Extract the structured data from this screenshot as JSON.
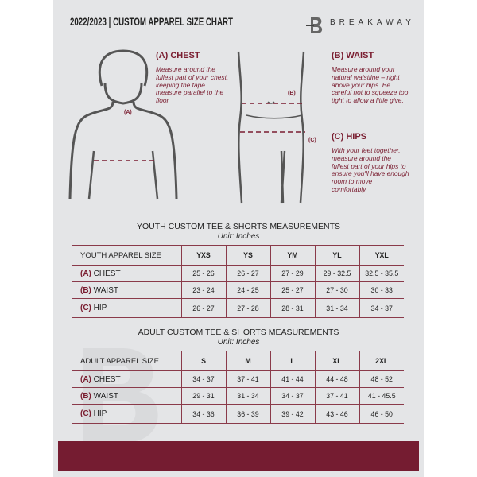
{
  "header": {
    "title": "2022/2023  |  CUSTOM APPAREL SIZE CHART",
    "brand": "BREAKAWAY"
  },
  "guides": {
    "chest": {
      "title": "(A) CHEST",
      "text": "Measure around the fullest part of your chest, keeping the tape measure parallel to the floor",
      "marker": "(A)"
    },
    "waist": {
      "title": "(B) WAIST",
      "text": "Measure around your natural waistline – right above your hips. Be careful not to squeeze too tight to allow a little give.",
      "marker": "(B)"
    },
    "hips": {
      "title": "(C) HIPS",
      "text": "With your feet together, measure around the fullest part of your hips to ensure you'll have enough room to move comfortably.",
      "marker": "(C)"
    }
  },
  "youth": {
    "title": "YOUTH CUSTOM TEE & SHORTS MEASUREMENTS",
    "unit": "Unit: Inches",
    "header": "YOUTH APPAREL SIZE",
    "sizes": [
      "YXS",
      "YS",
      "YM",
      "YL",
      "YXL"
    ],
    "rows": [
      {
        "code": "(A)",
        "name": "CHEST",
        "values": [
          "25 - 26",
          "26 - 27",
          "27 - 29",
          "29 - 32.5",
          "32.5 - 35.5"
        ]
      },
      {
        "code": "(B)",
        "name": "WAIST",
        "values": [
          "23 - 24",
          "24 - 25",
          "25 - 27",
          "27 - 30",
          "30 - 33"
        ]
      },
      {
        "code": "(C)",
        "name": "HIP",
        "values": [
          "26 - 27",
          "27 - 28",
          "28 - 31",
          "31 - 34",
          "34 - 37"
        ]
      }
    ]
  },
  "adult": {
    "title": "ADULT CUSTOM TEE & SHORTS MEASUREMENTS",
    "unit": "Unit: Inches",
    "header": "ADULT APPAREL SIZE",
    "sizes": [
      "S",
      "M",
      "L",
      "XL",
      "2XL"
    ],
    "rows": [
      {
        "code": "(A)",
        "name": "CHEST",
        "values": [
          "34 - 37",
          "37 - 41",
          "41 - 44",
          "44 - 48",
          "48 - 52"
        ]
      },
      {
        "code": "(B)",
        "name": "WAIST",
        "values": [
          "29 - 31",
          "31 - 34",
          "34 - 37",
          "37 - 41",
          "41 - 45.5"
        ]
      },
      {
        "code": "(C)",
        "name": "HIP",
        "values": [
          "34 - 36",
          "36 - 39",
          "39 - 42",
          "43 - 46",
          "46 - 50"
        ]
      }
    ]
  },
  "colors": {
    "accent": "#751c31",
    "background": "#e4e5e7"
  }
}
